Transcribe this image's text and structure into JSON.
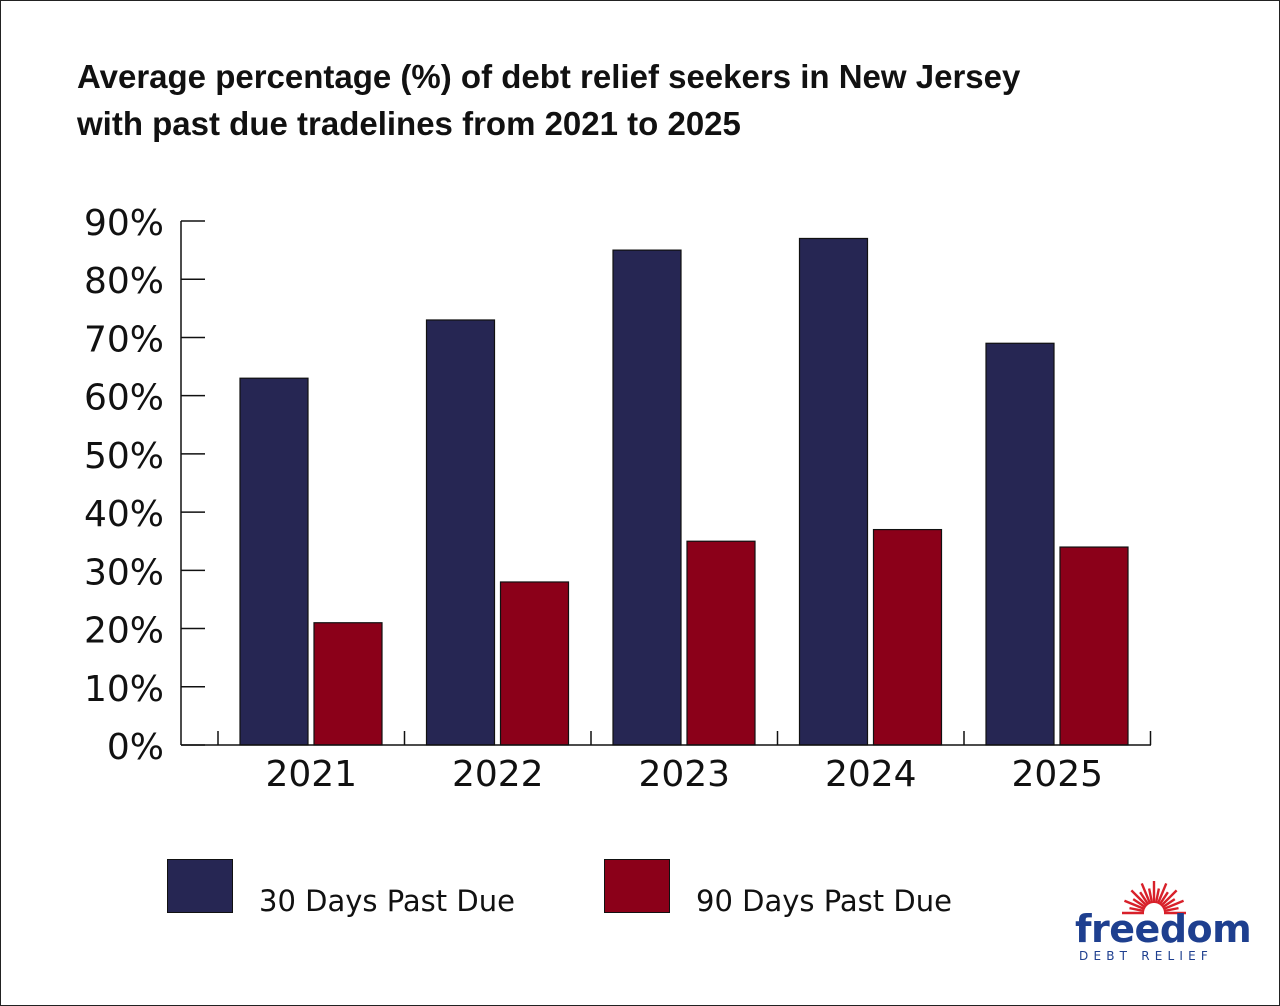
{
  "title_lines": [
    "Average percentage (%) of debt relief seekers in New Jersey",
    "with past due tradelines from 2021 to 2025"
  ],
  "chart_data": {
    "type": "bar",
    "title": "Average percentage (%) of debt relief seekers in New Jersey with past due tradelines from 2021 to 2025",
    "categories": [
      "2021",
      "2022",
      "2023",
      "2024",
      "2025"
    ],
    "series": [
      {
        "name": "30 Days Past Due",
        "values": [
          63,
          73,
          85,
          87,
          69
        ],
        "color": "#262653"
      },
      {
        "name": "90 Days Past Due",
        "values": [
          21,
          28,
          35,
          37,
          34
        ],
        "color": "#8b0019"
      }
    ],
    "ylim": [
      0,
      90
    ],
    "yticks": [
      0,
      10,
      20,
      30,
      40,
      50,
      60,
      70,
      80,
      90
    ],
    "ytick_labels": [
      "0%",
      "10%",
      "20%",
      "30%",
      "40%",
      "50%",
      "60%",
      "70%",
      "80%",
      "90%"
    ],
    "xlabel": "",
    "ylabel": "",
    "grid": false,
    "legend_position": "bottom"
  },
  "legend": {
    "item1": "30 Days Past Due",
    "item2": "90 Days Past Due"
  },
  "logo": {
    "wordmark": "freedom",
    "subtitle": "DEBT RELIEF",
    "word_color": "#1e3f8f",
    "sun_color": "#d8202a"
  }
}
